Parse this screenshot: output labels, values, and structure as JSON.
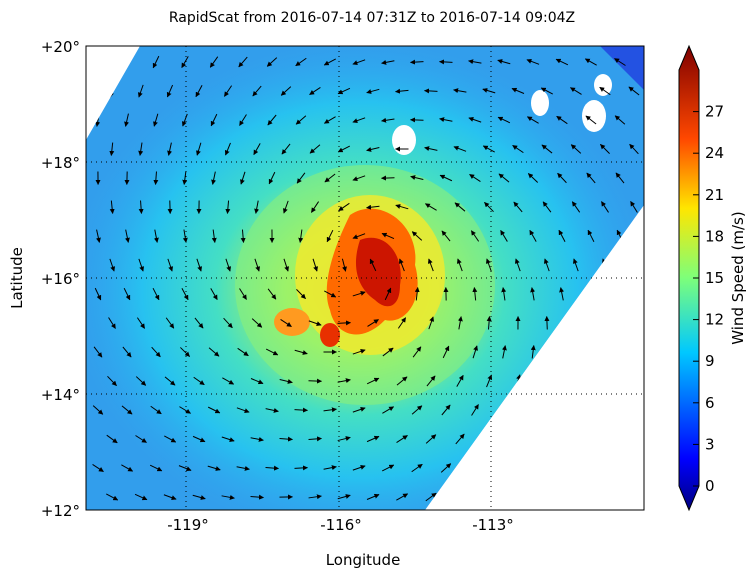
{
  "title": "RapidScat  from 2016-07-14 07:31Z to 2016-07-14 09:04Z",
  "xlabel": "Longitude",
  "ylabel": "Latitude",
  "x_ticks": [
    "-119°",
    "-116°",
    "-113°"
  ],
  "y_ticks": [
    "+20°",
    "+18°",
    "+16°",
    "+14°",
    "+12°"
  ],
  "colorbar": {
    "label": "Wind Speed (m/s)",
    "ticks": [
      "27",
      "24",
      "21",
      "18",
      "15",
      "12",
      "9",
      "6",
      "3",
      "0"
    ],
    "min": 0,
    "max": 30,
    "colormap": "jet"
  },
  "map": {
    "lon_range": [
      -121,
      -110
    ],
    "lat_range": [
      12,
      20
    ],
    "gridlines": "dotted",
    "storm_center": {
      "lon": -115.6,
      "lat": 16.2
    },
    "max_wind_ms": 29
  },
  "colors": {
    "low": "#1f6fe8",
    "mid": "#2fd0ff",
    "high": "#ff8a00",
    "core": "#b30000"
  }
}
